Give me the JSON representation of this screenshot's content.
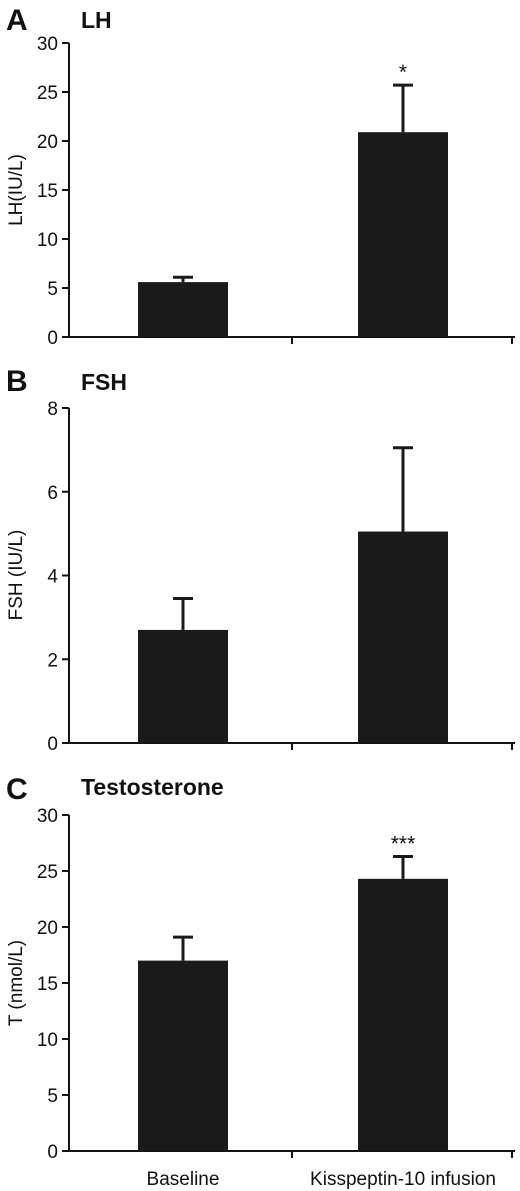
{
  "chart_data": [
    {
      "type": "bar",
      "panel": "A",
      "title": "LH",
      "ylabel": "LH(IU/L)",
      "categories": [
        "Baseline",
        "Kisspeptin-10 infusion"
      ],
      "values": [
        5.6,
        20.9
      ],
      "error": [
        0.5,
        4.8
      ],
      "significance": [
        "",
        "*"
      ],
      "ylim": [
        0,
        30
      ],
      "yticks": [
        0,
        5,
        10,
        15,
        20,
        25,
        30
      ],
      "color": "#1a1a1a"
    },
    {
      "type": "bar",
      "panel": "B",
      "title": "FSH",
      "ylabel": "FSH (IU/L)",
      "categories": [
        "Baseline",
        "Kisspeptin-10 infusion"
      ],
      "values": [
        2.7,
        5.05
      ],
      "error": [
        0.75,
        2.0
      ],
      "significance": [
        "",
        ""
      ],
      "ylim": [
        0,
        8
      ],
      "yticks": [
        0,
        2,
        4,
        6,
        8
      ],
      "color": "#1a1a1a"
    },
    {
      "type": "bar",
      "panel": "C",
      "title": "Testosterone",
      "ylabel": "T (nmol/L)",
      "categories": [
        "Baseline",
        "Kisspeptin-10 infusion"
      ],
      "values": [
        17.0,
        24.3
      ],
      "error": [
        2.1,
        2.0
      ],
      "significance": [
        "",
        "***"
      ],
      "ylim": [
        0,
        30
      ],
      "yticks": [
        0,
        5,
        10,
        15,
        20,
        25,
        30
      ],
      "color": "#1a1a1a"
    }
  ]
}
